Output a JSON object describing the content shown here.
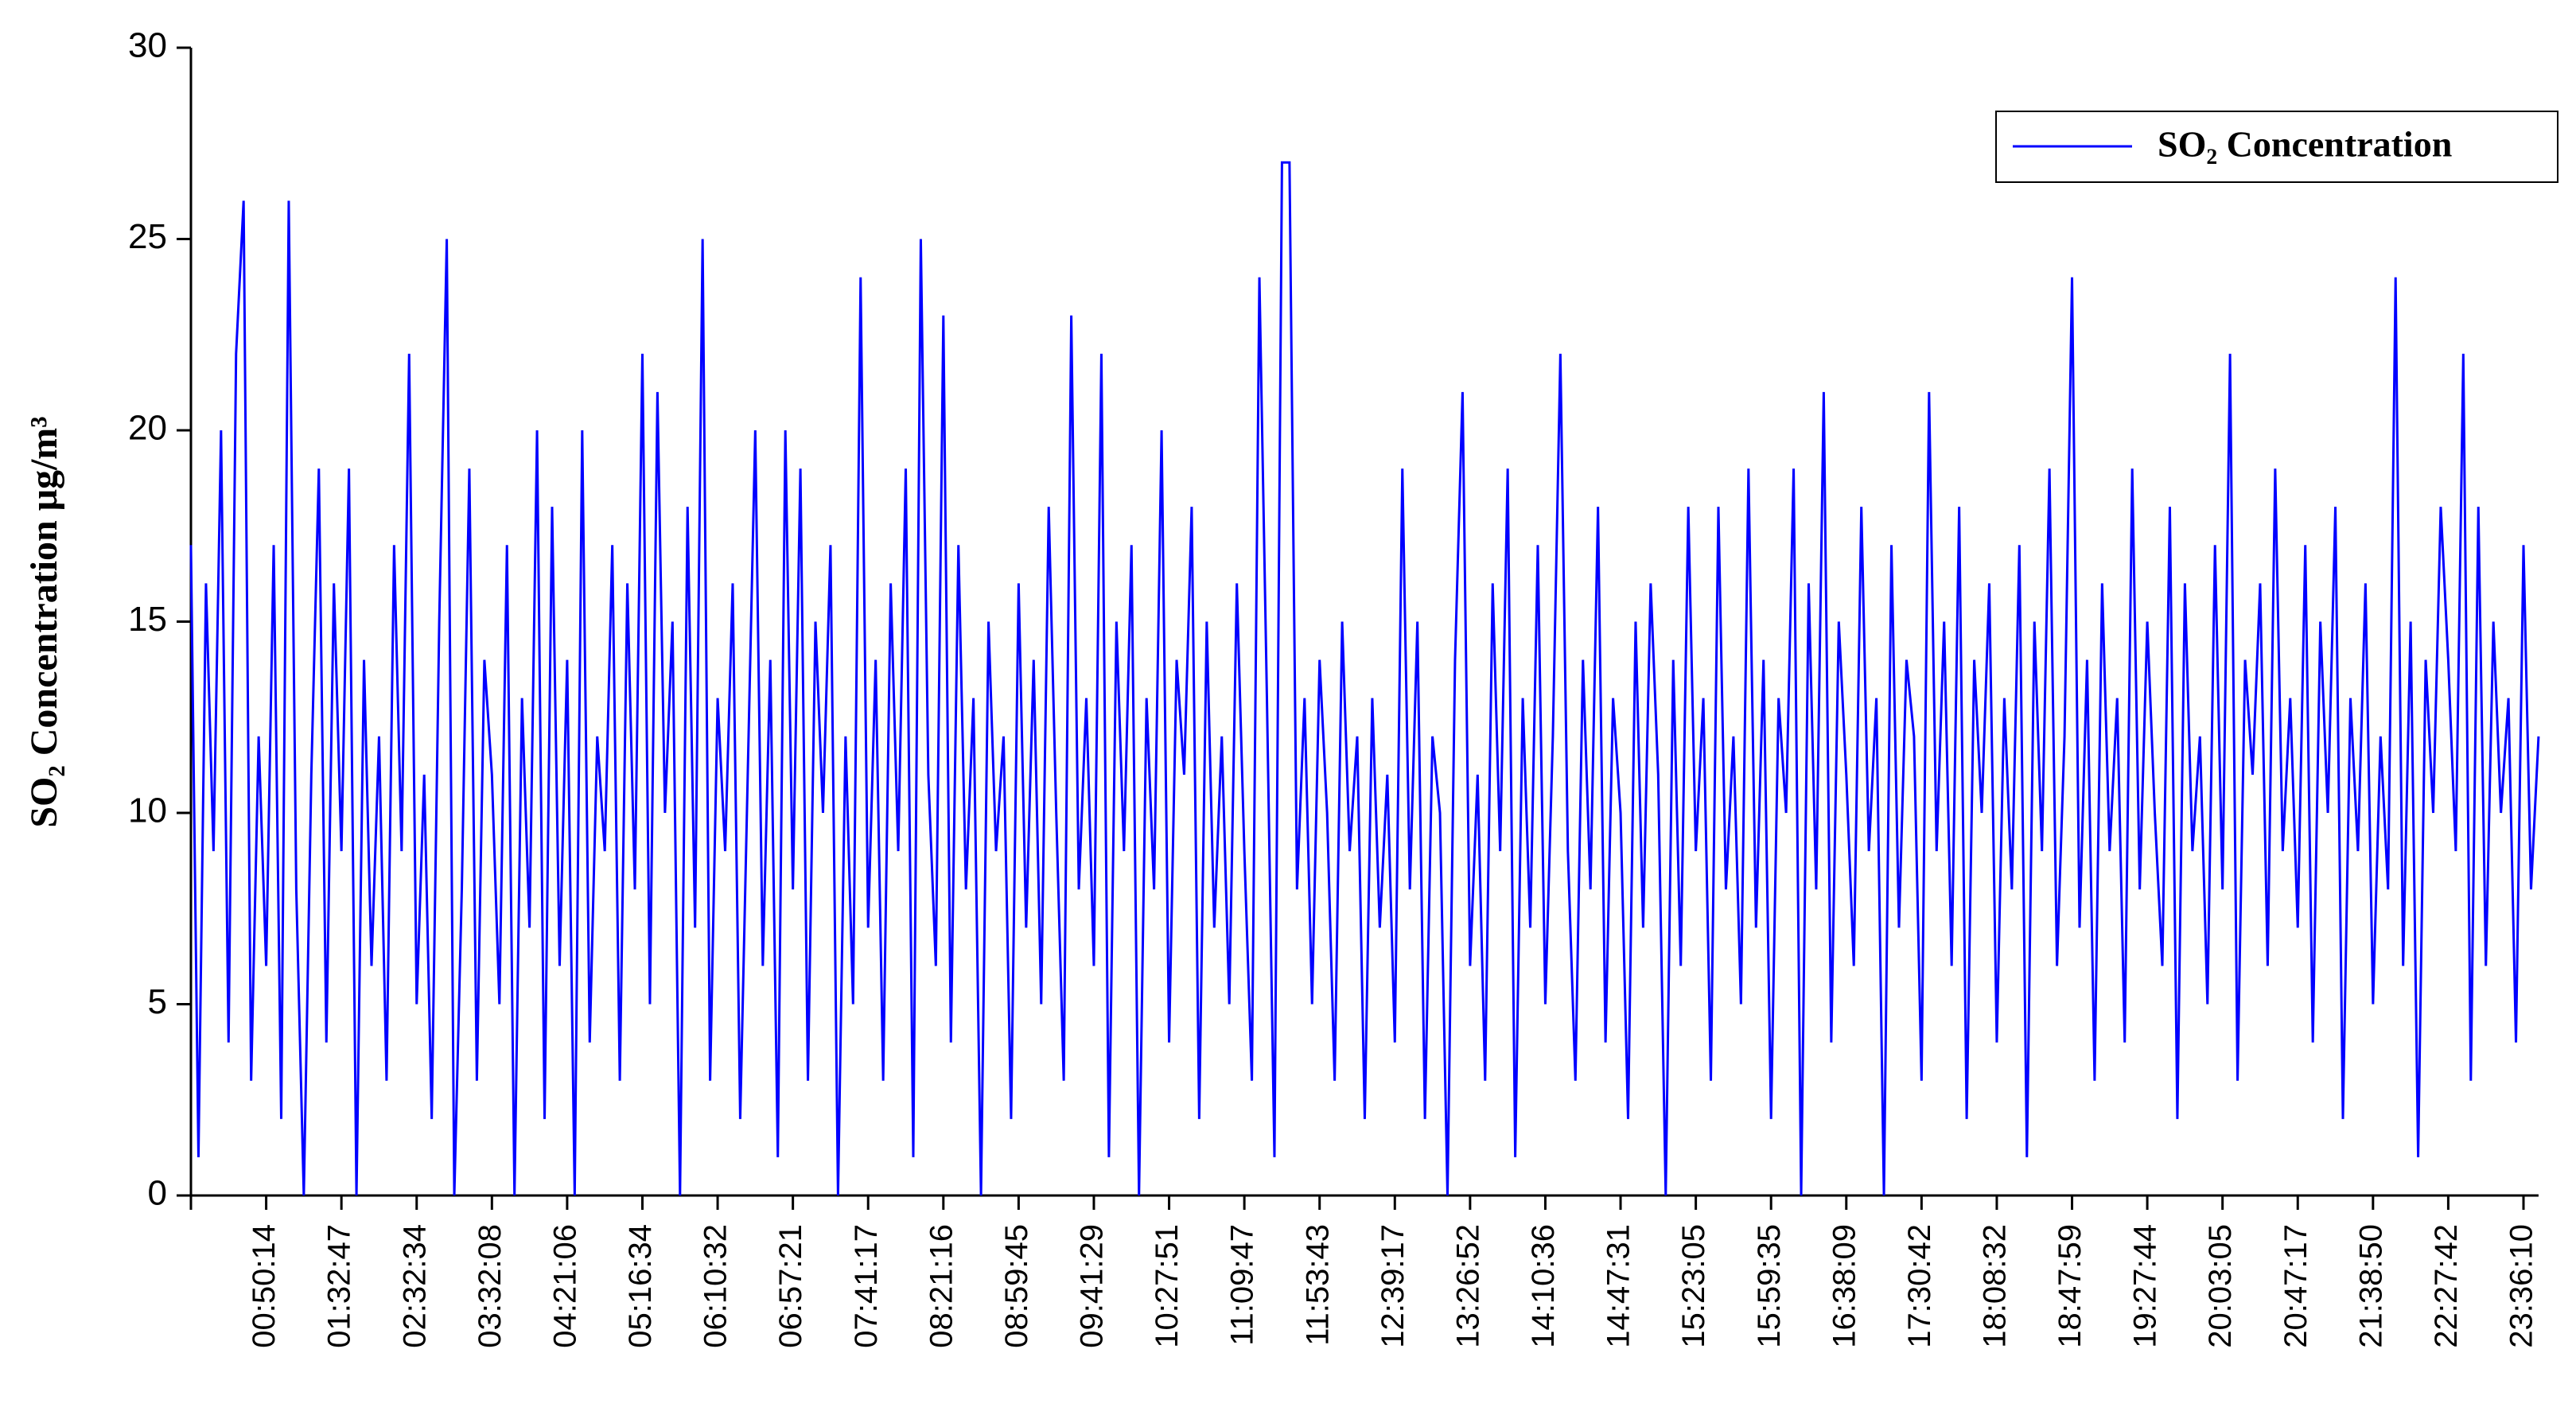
{
  "chart_data": {
    "type": "line",
    "y_label": "SO₂ Concentration  μg/m³",
    "ylim": [
      0,
      30
    ],
    "yticks": [
      0,
      5,
      10,
      15,
      20,
      25,
      30
    ],
    "legend": "upper right",
    "categories": [
      null,
      null,
      null,
      null,
      null,
      null,
      null,
      null,
      null,
      null,
      "00:50:14",
      null,
      null,
      null,
      null,
      null,
      null,
      null,
      null,
      null,
      "01:32:47",
      null,
      null,
      null,
      null,
      null,
      null,
      null,
      null,
      null,
      "02:32:34",
      null,
      null,
      null,
      null,
      null,
      null,
      null,
      null,
      null,
      "03:32:08",
      null,
      null,
      null,
      null,
      null,
      null,
      null,
      null,
      null,
      "04:21:06",
      null,
      null,
      null,
      null,
      null,
      null,
      null,
      null,
      null,
      "05:16:34",
      null,
      null,
      null,
      null,
      null,
      null,
      null,
      null,
      null,
      "06:10:32",
      null,
      null,
      null,
      null,
      null,
      null,
      null,
      null,
      null,
      "06:57:21",
      null,
      null,
      null,
      null,
      null,
      null,
      null,
      null,
      null,
      "07:41:17",
      null,
      null,
      null,
      null,
      null,
      null,
      null,
      null,
      null,
      "08:21:16",
      null,
      null,
      null,
      null,
      null,
      null,
      null,
      null,
      null,
      "08:59:45",
      null,
      null,
      null,
      null,
      null,
      null,
      null,
      null,
      null,
      "09:41:29",
      null,
      null,
      null,
      null,
      null,
      null,
      null,
      null,
      null,
      "10:27:51",
      null,
      null,
      null,
      null,
      null,
      null,
      null,
      null,
      null,
      "11:09:47",
      null,
      null,
      null,
      null,
      null,
      null,
      null,
      null,
      null,
      "11:53:43",
      null,
      null,
      null,
      null,
      null,
      null,
      null,
      null,
      null,
      "12:39:17",
      null,
      null,
      null,
      null,
      null,
      null,
      null,
      null,
      null,
      "13:26:52",
      null,
      null,
      null,
      null,
      null,
      null,
      null,
      null,
      null,
      "14:10:36",
      null,
      null,
      null,
      null,
      null,
      null,
      null,
      null,
      null,
      "14:47:31",
      null,
      null,
      null,
      null,
      null,
      null,
      null,
      null,
      null,
      "15:23:05",
      null,
      null,
      null,
      null,
      null,
      null,
      null,
      null,
      null,
      "15:59:35",
      null,
      null,
      null,
      null,
      null,
      null,
      null,
      null,
      null,
      "16:38:09",
      null,
      null,
      null,
      null,
      null,
      null,
      null,
      null,
      null,
      "17:30:42",
      null,
      null,
      null,
      null,
      null,
      null,
      null,
      null,
      null,
      "18:08:32",
      null,
      null,
      null,
      null,
      null,
      null,
      null,
      null,
      null,
      "18:47:59",
      null,
      null,
      null,
      null,
      null,
      null,
      null,
      null,
      null,
      "19:27:44",
      null,
      null,
      null,
      null,
      null,
      null,
      null,
      null,
      null,
      "20:03:05",
      null,
      null,
      null,
      null,
      null,
      null,
      null,
      null,
      null,
      "20:47:17",
      null,
      null,
      null,
      null,
      null,
      null,
      null,
      null,
      null,
      "21:38:50",
      null,
      null,
      null,
      null,
      null,
      null,
      null,
      null,
      null,
      "22:27:42",
      null,
      null,
      null,
      null,
      null,
      null,
      null,
      null,
      null,
      "23:36:10",
      null,
      null
    ],
    "series": [
      {
        "name": "SO₂ Concentration",
        "color": "#0000ff",
        "values": [
          17,
          1,
          16,
          9,
          20,
          4,
          22,
          26,
          3,
          12,
          6,
          17,
          2,
          26,
          8,
          0,
          11,
          19,
          4,
          16,
          9,
          19,
          0,
          14,
          6,
          12,
          3,
          17,
          9,
          22,
          5,
          11,
          2,
          15,
          25,
          0,
          8,
          19,
          3,
          14,
          11,
          5,
          17,
          0,
          13,
          7,
          20,
          2,
          18,
          6,
          14,
          0,
          20,
          4,
          12,
          9,
          17,
          3,
          16,
          8,
          22,
          5,
          21,
          10,
          15,
          0,
          18,
          7,
          25,
          3,
          13,
          9,
          16,
          2,
          11,
          20,
          6,
          14,
          1,
          20,
          8,
          19,
          3,
          15,
          10,
          17,
          0,
          12,
          5,
          24,
          7,
          14,
          3,
          16,
          9,
          19,
          1,
          25,
          11,
          6,
          23,
          4,
          17,
          8,
          13,
          0,
          15,
          9,
          12,
          2,
          16,
          7,
          14,
          5,
          18,
          10,
          3,
          23,
          8,
          13,
          6,
          22,
          1,
          15,
          9,
          17,
          0,
          13,
          8,
          20,
          4,
          14,
          11,
          18,
          2,
          15,
          7,
          12,
          5,
          16,
          9,
          3,
          24,
          13,
          1,
          27,
          27,
          8,
          13,
          5,
          14,
          10,
          3,
          15,
          9,
          12,
          2,
          13,
          7,
          11,
          4,
          19,
          8,
          15,
          2,
          12,
          10,
          0,
          14,
          21,
          6,
          11,
          3,
          16,
          9,
          19,
          1,
          13,
          7,
          17,
          5,
          12,
          22,
          9,
          3,
          14,
          8,
          18,
          4,
          13,
          10,
          2,
          15,
          7,
          16,
          11,
          0,
          14,
          6,
          18,
          9,
          13,
          3,
          18,
          8,
          12,
          5,
          19,
          7,
          14,
          2,
          13,
          10,
          19,
          0,
          16,
          8,
          21,
          4,
          15,
          11,
          6,
          18,
          9,
          13,
          0,
          17,
          7,
          14,
          12,
          3,
          21,
          9,
          15,
          6,
          18,
          2,
          14,
          10,
          16,
          4,
          13,
          8,
          17,
          1,
          15,
          9,
          19,
          6,
          12,
          24,
          7,
          14,
          3,
          16,
          9,
          13,
          4,
          19,
          8,
          15,
          10,
          6,
          18,
          2,
          16,
          9,
          12,
          5,
          17,
          8,
          22,
          3,
          14,
          11,
          16,
          6,
          19,
          9,
          13,
          7,
          17,
          4,
          15,
          10,
          18,
          2,
          13,
          9,
          16,
          5,
          12,
          8,
          24,
          6,
          15,
          1,
          14,
          10,
          18,
          14,
          9,
          22,
          3,
          18,
          6,
          15,
          10,
          13,
          4,
          17,
          8,
          12
        ]
      }
    ]
  }
}
